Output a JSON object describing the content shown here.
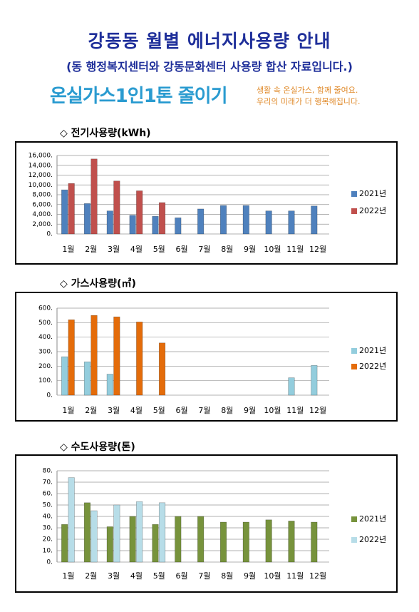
{
  "header": {
    "title": "강동동 월별 에너지사용량 안내",
    "subtitle": "(동 행정복지센터와 강동문화센터 사용량 합산 자료입니다.)",
    "slogan": "온실가스1인1톤 줄이기",
    "slogan_line1": "생활 속 온실가스, 함께 줄여요.",
    "slogan_line2": "우리의 미래가 더 행복해집니다."
  },
  "chart_data": [
    {
      "type": "bar",
      "title": "◇ 전기사용량(kWh)",
      "categories": [
        "1월",
        "2월",
        "3월",
        "4월",
        "5월",
        "6월",
        "7월",
        "8월",
        "9월",
        "10월",
        "11월",
        "12월"
      ],
      "series": [
        {
          "name": "2021년",
          "color": "#4f81bd",
          "values": [
            9000,
            6200,
            4700,
            3800,
            3600,
            3300,
            5100,
            5800,
            5800,
            4700,
            4700,
            5700
          ]
        },
        {
          "name": "2022년",
          "color": "#c0504d",
          "values": [
            10300,
            15300,
            10800,
            8800,
            6400,
            null,
            null,
            null,
            null,
            null,
            null,
            null
          ]
        }
      ],
      "ylim": [
        0,
        16000
      ],
      "yticks": [
        {
          "value": 0,
          "label": "0."
        },
        {
          "value": 2000,
          "label": "2,000."
        },
        {
          "value": 4000,
          "label": "4,000."
        },
        {
          "value": 6000,
          "label": "6,000."
        },
        {
          "value": 8000,
          "label": "8,000."
        },
        {
          "value": 10000,
          "label": "10,000."
        },
        {
          "value": 12000,
          "label": "12,000."
        },
        {
          "value": 14000,
          "label": "14,000."
        },
        {
          "value": 16000,
          "label": "16,000."
        }
      ],
      "grid": true,
      "legend": "right"
    },
    {
      "type": "bar",
      "title": "◇ 가스사용량(㎥)",
      "categories": [
        "1월",
        "2월",
        "3월",
        "4월",
        "5월",
        "6월",
        "7월",
        "8월",
        "9월",
        "10월",
        "11월",
        "12월"
      ],
      "series": [
        {
          "name": "2021년",
          "color": "#93cddd",
          "values": [
            265,
            230,
            145,
            0,
            0,
            0,
            0,
            0,
            0,
            0,
            120,
            205
          ]
        },
        {
          "name": "2022년",
          "color": "#e46c0a",
          "values": [
            520,
            550,
            540,
            505,
            360,
            null,
            null,
            null,
            null,
            null,
            null,
            null
          ]
        }
      ],
      "ylim": [
        0,
        600
      ],
      "yticks": [
        {
          "value": 0,
          "label": "0."
        },
        {
          "value": 100,
          "label": "100."
        },
        {
          "value": 200,
          "label": "200."
        },
        {
          "value": 300,
          "label": "300."
        },
        {
          "value": 400,
          "label": "400."
        },
        {
          "value": 500,
          "label": "500."
        },
        {
          "value": 600,
          "label": "600."
        }
      ],
      "grid": true,
      "legend": "right"
    },
    {
      "type": "bar",
      "title": "◇ 수도사용량(톤)",
      "categories": [
        "1월",
        "2월",
        "3월",
        "4월",
        "5월",
        "6월",
        "7월",
        "8월",
        "9월",
        "10월",
        "11월",
        "12월"
      ],
      "series": [
        {
          "name": "2021년",
          "color": "#77933c",
          "values": [
            33,
            52,
            31,
            40,
            33,
            40,
            40,
            35,
            35,
            37,
            36,
            35
          ]
        },
        {
          "name": "2022년",
          "color": "#b7dde8",
          "values": [
            74,
            45,
            50,
            53,
            52,
            null,
            null,
            null,
            null,
            null,
            null,
            null
          ]
        }
      ],
      "ylim": [
        0,
        80
      ],
      "yticks": [
        {
          "value": 0,
          "label": "0."
        },
        {
          "value": 10,
          "label": "10."
        },
        {
          "value": 20,
          "label": "20."
        },
        {
          "value": 30,
          "label": "30."
        },
        {
          "value": 40,
          "label": "40."
        },
        {
          "value": 50,
          "label": "50."
        },
        {
          "value": 60,
          "label": "60."
        },
        {
          "value": 70,
          "label": "70."
        },
        {
          "value": 80,
          "label": "80."
        }
      ],
      "grid": true,
      "legend": "right"
    }
  ]
}
